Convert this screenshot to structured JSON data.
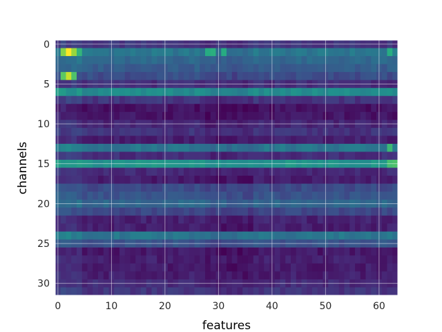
{
  "chart_data": {
    "type": "heatmap",
    "title": "",
    "xlabel": "features",
    "ylabel": "channels",
    "x_range": [
      -0.5,
      63.5
    ],
    "y_range": [
      -0.5,
      31.5
    ],
    "y_inverted": true,
    "x_ticks": [
      {
        "value": 0,
        "label": "0"
      },
      {
        "value": 10,
        "label": "10"
      },
      {
        "value": 20,
        "label": "20"
      },
      {
        "value": 30,
        "label": "30"
      },
      {
        "value": 40,
        "label": "40"
      },
      {
        "value": 50,
        "label": "50"
      },
      {
        "value": 60,
        "label": "60"
      }
    ],
    "y_ticks": [
      {
        "value": 0,
        "label": "0"
      },
      {
        "value": 5,
        "label": "5"
      },
      {
        "value": 10,
        "label": "10"
      },
      {
        "value": 15,
        "label": "15"
      },
      {
        "value": 20,
        "label": "20"
      },
      {
        "value": 25,
        "label": "25"
      },
      {
        "value": 30,
        "label": "30"
      }
    ],
    "grid": true,
    "colormap": "viridis",
    "n_rows": 32,
    "n_cols": 64,
    "row_base_levels": [
      0.16,
      0.4,
      0.34,
      0.3,
      0.24,
      0.14,
      0.48,
      0.16,
      0.05,
      0.06,
      0.11,
      0.15,
      0.09,
      0.4,
      0.14,
      0.52,
      0.12,
      0.08,
      0.23,
      0.26,
      0.34,
      0.22,
      0.1,
      0.09,
      0.4,
      0.26,
      0.07,
      0.09,
      0.08,
      0.09,
      0.13,
      0.16
    ],
    "hotspots": [
      {
        "row": 1,
        "col": 1,
        "value": 0.82
      },
      {
        "row": 1,
        "col": 2,
        "value": 1.0
      },
      {
        "row": 1,
        "col": 3,
        "value": 0.85
      },
      {
        "row": 1,
        "col": 4,
        "value": 0.66
      },
      {
        "row": 4,
        "col": 1,
        "value": 0.75
      },
      {
        "row": 4,
        "col": 2,
        "value": 0.92
      },
      {
        "row": 4,
        "col": 3,
        "value": 0.72
      },
      {
        "row": 1,
        "col": 28,
        "value": 0.62
      },
      {
        "row": 1,
        "col": 29,
        "value": 0.64
      },
      {
        "row": 1,
        "col": 31,
        "value": 0.62
      },
      {
        "row": 1,
        "col": 62,
        "value": 0.63
      },
      {
        "row": 13,
        "col": 62,
        "value": 0.68
      },
      {
        "row": 15,
        "col": 62,
        "value": 0.7
      },
      {
        "row": 15,
        "col": 63,
        "value": 0.72
      }
    ]
  }
}
